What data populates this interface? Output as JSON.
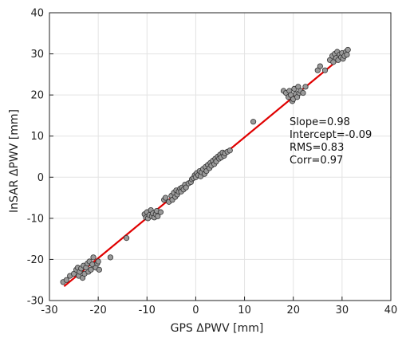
{
  "chart_data": {
    "type": "scatter",
    "title": "",
    "xlabel": "GPS   ΔPWV [mm]",
    "ylabel": "InSAR ΔPWV [mm]",
    "xlim": [
      -30,
      40
    ],
    "ylim": [
      -30,
      40
    ],
    "xticks": [
      -30,
      -20,
      -10,
      0,
      10,
      20,
      30,
      40
    ],
    "yticks": [
      -30,
      -20,
      -10,
      0,
      10,
      20,
      30,
      40
    ],
    "grid": true,
    "marker_color": "#9a9a9a",
    "marker_edge": "#333333",
    "fit_color": "#e00000",
    "fit_line": {
      "slope": 0.98,
      "intercept": -0.09,
      "x": [
        -27,
        31.3
      ]
    },
    "stats": [
      "Slope=0.98",
      "Intercept=-0.09",
      "RMS=0.83",
      "Corr=0.97"
    ],
    "points": [
      [
        -27.2,
        -25.5
      ],
      [
        -26.5,
        -25.0
      ],
      [
        -25.8,
        -24.0
      ],
      [
        -25.0,
        -23.5
      ],
      [
        -24.5,
        -22.5
      ],
      [
        -24.2,
        -22.0
      ],
      [
        -24.0,
        -24.0
      ],
      [
        -23.8,
        -23.0
      ],
      [
        -23.5,
        -22.2
      ],
      [
        -23.2,
        -24.5
      ],
      [
        -23.0,
        -21.5
      ],
      [
        -22.8,
        -23.5
      ],
      [
        -22.5,
        -22.0
      ],
      [
        -22.2,
        -21.0
      ],
      [
        -22.0,
        -23.0
      ],
      [
        -21.8,
        -20.5
      ],
      [
        -21.5,
        -22.5
      ],
      [
        -21.2,
        -21.2
      ],
      [
        -21.0,
        -19.5
      ],
      [
        -20.5,
        -22.0
      ],
      [
        -20.2,
        -21.0
      ],
      [
        -20.0,
        -20.5
      ],
      [
        -19.8,
        -22.5
      ],
      [
        -17.5,
        -19.5
      ],
      [
        -14.2,
        -14.8
      ],
      [
        -10.5,
        -9.0
      ],
      [
        -10.2,
        -9.8
      ],
      [
        -10.0,
        -8.5
      ],
      [
        -9.8,
        -10.0
      ],
      [
        -9.5,
        -9.2
      ],
      [
        -9.2,
        -8.0
      ],
      [
        -9.0,
        -9.5
      ],
      [
        -8.8,
        -8.8
      ],
      [
        -8.5,
        -9.8
      ],
      [
        -8.2,
        -9.0
      ],
      [
        -8.0,
        -8.2
      ],
      [
        -7.8,
        -9.5
      ],
      [
        -7.2,
        -8.5
      ],
      [
        -6.5,
        -5.5
      ],
      [
        -6.2,
        -5.0
      ],
      [
        -5.5,
        -6.0
      ],
      [
        -5.0,
        -4.5
      ],
      [
        -4.8,
        -5.5
      ],
      [
        -4.5,
        -3.8
      ],
      [
        -4.2,
        -4.8
      ],
      [
        -4.0,
        -3.2
      ],
      [
        -3.8,
        -4.2
      ],
      [
        -3.5,
        -3.5
      ],
      [
        -3.2,
        -2.8
      ],
      [
        -3.0,
        -3.5
      ],
      [
        -2.8,
        -2.5
      ],
      [
        -2.5,
        -3.0
      ],
      [
        -2.2,
        -1.8
      ],
      [
        -2.0,
        -2.5
      ],
      [
        -1.5,
        -1.5
      ],
      [
        -1.0,
        -1.2
      ],
      [
        -0.8,
        -0.5
      ],
      [
        -0.5,
        -0.2
      ],
      [
        -0.2,
        0.5
      ],
      [
        0.0,
        0.0
      ],
      [
        0.2,
        1.0
      ],
      [
        0.5,
        0.5
      ],
      [
        0.8,
        1.5
      ],
      [
        1.0,
        0.2
      ],
      [
        1.2,
        1.2
      ],
      [
        1.5,
        2.0
      ],
      [
        1.8,
        0.8
      ],
      [
        2.0,
        2.5
      ],
      [
        2.2,
        1.5
      ],
      [
        2.5,
        3.0
      ],
      [
        2.8,
        2.2
      ],
      [
        3.0,
        3.5
      ],
      [
        3.2,
        2.8
      ],
      [
        3.5,
        4.0
      ],
      [
        3.8,
        3.2
      ],
      [
        4.0,
        4.5
      ],
      [
        4.2,
        3.8
      ],
      [
        4.5,
        5.0
      ],
      [
        4.8,
        4.5
      ],
      [
        5.0,
        5.5
      ],
      [
        5.2,
        4.8
      ],
      [
        5.5,
        6.0
      ],
      [
        5.8,
        5.2
      ],
      [
        6.0,
        5.8
      ],
      [
        6.5,
        6.2
      ],
      [
        7.0,
        6.5
      ],
      [
        11.8,
        13.5
      ],
      [
        18.0,
        21.0
      ],
      [
        18.5,
        20.5
      ],
      [
        19.0,
        19.5
      ],
      [
        19.2,
        21.0
      ],
      [
        19.5,
        20.0
      ],
      [
        19.8,
        18.5
      ],
      [
        20.0,
        19.0
      ],
      [
        20.2,
        21.5
      ],
      [
        20.5,
        20.2
      ],
      [
        20.8,
        19.5
      ],
      [
        21.0,
        22.0
      ],
      [
        21.2,
        20.5
      ],
      [
        21.5,
        21.0
      ],
      [
        22.0,
        20.5
      ],
      [
        22.5,
        22.0
      ],
      [
        25.0,
        26.0
      ],
      [
        25.5,
        27.0
      ],
      [
        26.5,
        26.0
      ],
      [
        27.5,
        28.5
      ],
      [
        28.0,
        29.5
      ],
      [
        28.2,
        28.0
      ],
      [
        28.5,
        30.0
      ],
      [
        28.8,
        29.0
      ],
      [
        29.0,
        30.5
      ],
      [
        29.2,
        28.5
      ],
      [
        29.5,
        29.8
      ],
      [
        29.8,
        29.2
      ],
      [
        30.0,
        30.2
      ],
      [
        30.2,
        28.8
      ],
      [
        30.5,
        29.5
      ],
      [
        30.8,
        30.5
      ],
      [
        31.0,
        29.8
      ],
      [
        31.2,
        31.0
      ]
    ]
  }
}
